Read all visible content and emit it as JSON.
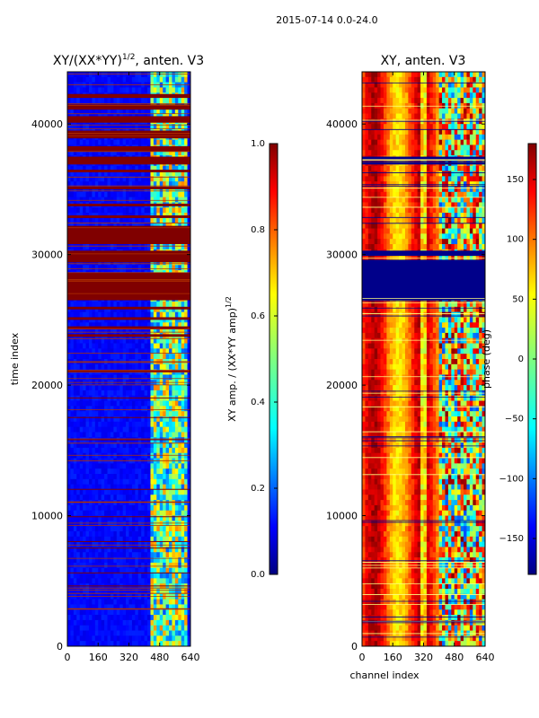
{
  "figure": {
    "suptitle": "2015-07-14 0.0-24.0"
  },
  "chart_data": [
    {
      "type": "heatmap",
      "title": "XY/(XX*YY)",
      "title_exp": "1/2",
      "title_suffix": ", anten. V3",
      "xlabel": "",
      "ylabel": "time index",
      "xlim": [
        0,
        640
      ],
      "ylim": [
        0,
        44000
      ],
      "xticks": [
        0,
        160,
        320,
        480,
        640
      ],
      "yticks": [
        0,
        10000,
        20000,
        30000,
        40000
      ],
      "colorbar": {
        "label": "XY amp. / (XX*YY amp)",
        "label_exp": "1/2",
        "range": [
          0.0,
          1.0
        ],
        "ticks": [
          "0.0",
          "0.2",
          "0.4",
          "0.6",
          "0.8",
          "1.0"
        ],
        "colormap": "jet"
      },
      "saturated_rows": [
        [
          26500,
          28600
        ],
        [
          29400,
          30300
        ],
        [
          30800,
          32200
        ],
        [
          36300,
          36500
        ],
        [
          36900,
          37500
        ],
        [
          37900,
          38300
        ],
        [
          38900,
          39500
        ],
        [
          40100,
          40600
        ],
        [
          41100,
          41500
        ],
        [
          42000,
          42300
        ],
        [
          25000,
          25200
        ],
        [
          24300,
          24500
        ],
        [
          23700,
          23900
        ],
        [
          25800,
          26000
        ],
        [
          35000,
          35200
        ],
        [
          33700,
          33900
        ],
        [
          32800,
          33000
        ],
        [
          21000,
          21100
        ],
        [
          19000,
          19050
        ],
        [
          17500,
          17550
        ],
        [
          15800,
          15850
        ],
        [
          12000,
          12050
        ],
        [
          9900,
          9950
        ],
        [
          8000,
          8050
        ],
        [
          7500,
          7550
        ],
        [
          5600,
          5650
        ],
        [
          4600,
          4650
        ]
      ],
      "mid_band_channels": [
        430,
        640
      ]
    },
    {
      "type": "heatmap",
      "title": "XY, anten. V3",
      "xlabel": "channel index",
      "ylabel": "",
      "xlim": [
        0,
        640
      ],
      "ylim": [
        0,
        44000
      ],
      "xticks": [
        0,
        160,
        320,
        480,
        640
      ],
      "yticks": [
        0,
        10000,
        20000,
        30000,
        40000
      ],
      "colorbar": {
        "label": "phase (deg)",
        "range": [
          -180,
          180
        ],
        "ticks": [
          "−150",
          "−100",
          "−50",
          "0",
          "50",
          "100",
          "150"
        ],
        "colormap": "jet"
      },
      "saturated_rows": [
        [
          26500,
          29600
        ],
        [
          29900,
          30300
        ],
        [
          37300,
          37500
        ],
        [
          36900,
          37100
        ]
      ]
    }
  ]
}
